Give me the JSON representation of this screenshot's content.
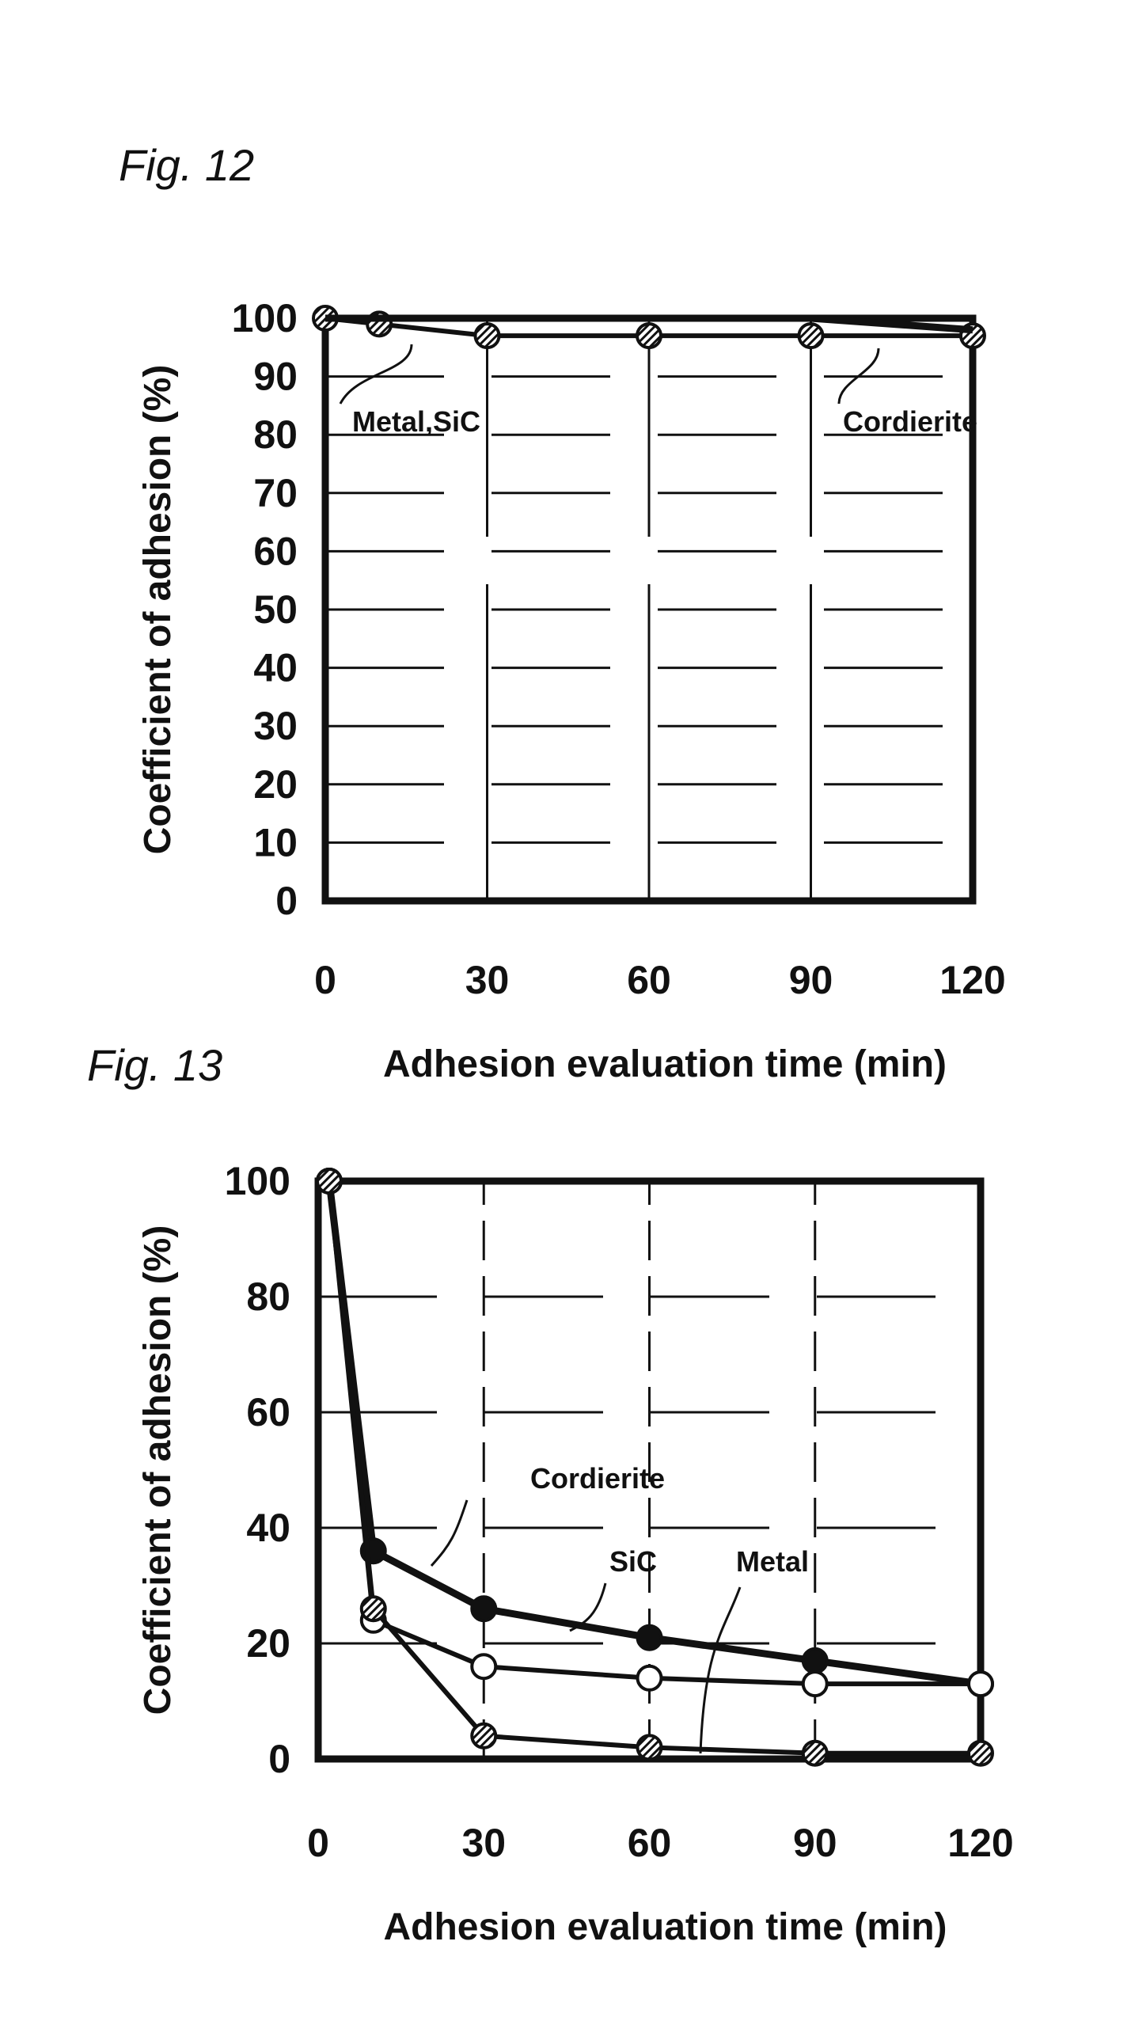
{
  "chart_data": [
    {
      "type": "line",
      "title": "Fig. 12",
      "xlabel": "Adhesion evaluation time (min)",
      "ylabel": "Coefficient of adhesion (%)",
      "xlim": [
        0,
        120
      ],
      "ylim": [
        0,
        100
      ],
      "xticks": [
        "0",
        "30",
        "60",
        "90",
        "120"
      ],
      "yticks": [
        "0",
        "10",
        "20",
        "30",
        "40",
        "50",
        "60",
        "70",
        "80",
        "90",
        "100"
      ],
      "grid": true,
      "x": [
        0,
        10,
        30,
        60,
        90,
        120
      ],
      "series": [
        {
          "name": "Metal,SiC",
          "marker": "hatched",
          "values": [
            100,
            99,
            97,
            97,
            97,
            97
          ]
        },
        {
          "name": "Cordierite",
          "marker": "none",
          "values": [
            100,
            100,
            100,
            100,
            100,
            98
          ]
        }
      ],
      "annotations": [
        "Metal,SiC",
        "Cordierite"
      ]
    },
    {
      "type": "line",
      "title": "Fig. 13",
      "xlabel": "Adhesion evaluation time (min)",
      "ylabel": "Coefficient of adhesion (%)",
      "xlim": [
        0,
        120
      ],
      "ylim": [
        0,
        100
      ],
      "xticks": [
        "0",
        "30",
        "60",
        "90",
        "120"
      ],
      "yticks": [
        "0",
        "20",
        "40",
        "60",
        "80",
        "100"
      ],
      "grid": true,
      "x": [
        2,
        10,
        30,
        60,
        90,
        120
      ],
      "series": [
        {
          "name": "Cordierite",
          "marker": "filled",
          "values": [
            100,
            36,
            26,
            21,
            17,
            13
          ]
        },
        {
          "name": "SiC",
          "marker": "open",
          "values": [
            100,
            24,
            16,
            14,
            13,
            13
          ]
        },
        {
          "name": "Metal",
          "marker": "hatched",
          "values": [
            100,
            26,
            4,
            2,
            1,
            1
          ]
        }
      ],
      "annotations": [
        "Cordierite",
        "SiC",
        "Metal"
      ]
    }
  ]
}
